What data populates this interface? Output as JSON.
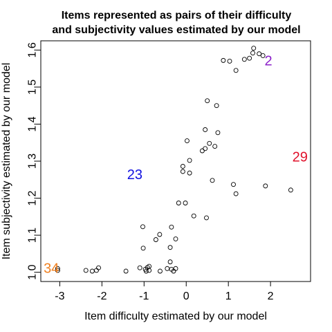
{
  "chart_data": {
    "type": "scatter",
    "title": "Items represented as pairs of their difficulty",
    "subtitle": "and subjectivity values estimated by our model",
    "xlabel": "Item difficulty estimated by our model",
    "ylabel": "Item subjectivity estimated by our model",
    "xlim": [
      -3.45,
      2.95
    ],
    "ylim": [
      0.975,
      1.625
    ],
    "xticks": [
      -3,
      -2,
      -1,
      0,
      1,
      2
    ],
    "xtick_labels": [
      "-3",
      "-2",
      "-1",
      "0",
      "1",
      "2"
    ],
    "yticks": [
      1.0,
      1.1,
      1.2,
      1.3,
      1.4,
      1.5,
      1.6
    ],
    "ytick_labels": [
      "1.0",
      "1.1",
      "1.2",
      "1.3",
      "1.4",
      "1.5",
      "1.6"
    ],
    "grid": false,
    "marker": "open-circle",
    "points": [
      {
        "x": -3.05,
        "y": 1.005
      },
      {
        "x": -3.05,
        "y": 1.01
      },
      {
        "x": -2.38,
        "y": 1.005
      },
      {
        "x": -2.23,
        "y": 1.003
      },
      {
        "x": -2.13,
        "y": 1.005
      },
      {
        "x": -2.08,
        "y": 1.012
      },
      {
        "x": -1.43,
        "y": 1.003
      },
      {
        "x": -1.1,
        "y": 1.012
      },
      {
        "x": -0.97,
        "y": 1.008
      },
      {
        "x": -0.92,
        "y": 1.013
      },
      {
        "x": -0.88,
        "y": 1.016
      },
      {
        "x": -0.95,
        "y": 1.003
      },
      {
        "x": -0.88,
        "y": 1.005
      },
      {
        "x": -0.62,
        "y": 1.003
      },
      {
        "x": -0.45,
        "y": 1.01
      },
      {
        "x": -0.38,
        "y": 1.028
      },
      {
        "x": -0.35,
        "y": 1.008
      },
      {
        "x": -0.3,
        "y": 1.003
      },
      {
        "x": -0.25,
        "y": 1.01
      },
      {
        "x": -1.02,
        "y": 1.065
      },
      {
        "x": -1.03,
        "y": 1.123
      },
      {
        "x": -0.72,
        "y": 1.088
      },
      {
        "x": -0.63,
        "y": 1.102
      },
      {
        "x": -0.38,
        "y": 1.067
      },
      {
        "x": -0.35,
        "y": 1.122
      },
      {
        "x": -0.25,
        "y": 1.09
      },
      {
        "x": -0.18,
        "y": 1.187
      },
      {
        "x": -0.02,
        "y": 1.187
      },
      {
        "x": 0.18,
        "y": 1.152
      },
      {
        "x": 0.48,
        "y": 1.147
      },
      {
        "x": -0.08,
        "y": 1.272
      },
      {
        "x": -0.08,
        "y": 1.286
      },
      {
        "x": 0.08,
        "y": 1.268
      },
      {
        "x": 0.02,
        "y": 1.355
      },
      {
        "x": 0.08,
        "y": 1.302
      },
      {
        "x": 0.38,
        "y": 1.328
      },
      {
        "x": 0.45,
        "y": 1.334
      },
      {
        "x": 0.45,
        "y": 1.385
      },
      {
        "x": 0.55,
        "y": 1.348
      },
      {
        "x": 0.68,
        "y": 1.34
      },
      {
        "x": 0.75,
        "y": 1.377
      },
      {
        "x": 0.62,
        "y": 1.248
      },
      {
        "x": 0.5,
        "y": 1.463
      },
      {
        "x": 0.72,
        "y": 1.45
      },
      {
        "x": 1.12,
        "y": 1.237
      },
      {
        "x": 1.18,
        "y": 1.212
      },
      {
        "x": 1.88,
        "y": 1.233
      },
      {
        "x": 2.48,
        "y": 1.222
      },
      {
        "x": 0.88,
        "y": 1.572
      },
      {
        "x": 1.03,
        "y": 1.57
      },
      {
        "x": 1.18,
        "y": 1.545
      },
      {
        "x": 1.38,
        "y": 1.575
      },
      {
        "x": 1.5,
        "y": 1.578
      },
      {
        "x": 1.58,
        "y": 1.592
      },
      {
        "x": 1.6,
        "y": 1.605
      },
      {
        "x": 1.73,
        "y": 1.59
      },
      {
        "x": 1.82,
        "y": 1.585
      }
    ],
    "annotations": [
      {
        "text": "2",
        "x": 1.95,
        "y": 1.57,
        "color": "#8B1FC9"
      },
      {
        "text": "23",
        "x": -1.22,
        "y": 1.263,
        "color": "#1010E0"
      },
      {
        "text": "29",
        "x": 2.7,
        "y": 1.31,
        "color": "#E0102A"
      },
      {
        "text": "34",
        "x": -3.2,
        "y": 1.01,
        "color": "#F08020"
      }
    ]
  }
}
